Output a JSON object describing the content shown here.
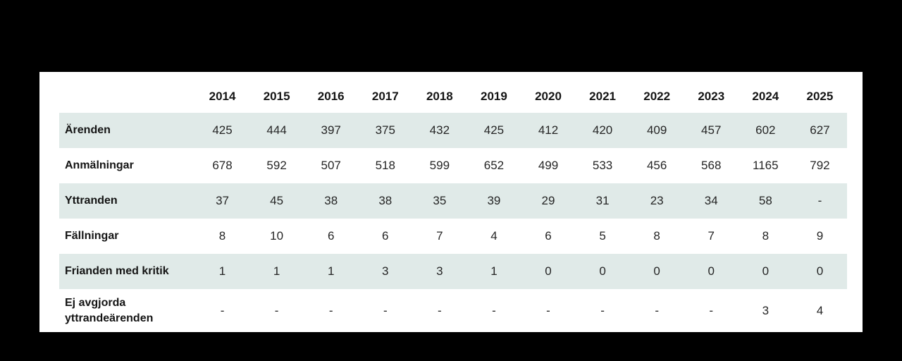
{
  "colors": {
    "page_background": "#000000",
    "card_background": "#ffffff",
    "row_shade": "#e0eae8",
    "heading_text": "#141414",
    "value_text": "#252525"
  },
  "chart_data": {
    "type": "table",
    "categories": [
      "2014",
      "2015",
      "2016",
      "2017",
      "2018",
      "2019",
      "2020",
      "2021",
      "2022",
      "2023",
      "2024",
      "2025"
    ],
    "series": [
      {
        "name": "Ärenden",
        "values": [
          425,
          444,
          397,
          375,
          432,
          425,
          412,
          420,
          409,
          457,
          602,
          627
        ]
      },
      {
        "name": "Anmälningar",
        "values": [
          678,
          592,
          507,
          518,
          599,
          652,
          499,
          533,
          456,
          568,
          1165,
          792
        ]
      },
      {
        "name": "Yttranden",
        "values": [
          37,
          45,
          38,
          38,
          35,
          39,
          29,
          31,
          23,
          34,
          58,
          "-"
        ]
      },
      {
        "name": "Fällningar",
        "values": [
          8,
          10,
          6,
          6,
          7,
          4,
          6,
          5,
          8,
          7,
          8,
          9
        ]
      },
      {
        "name": "Frianden med kritik",
        "values": [
          1,
          1,
          1,
          3,
          3,
          1,
          0,
          0,
          0,
          0,
          0,
          0
        ]
      },
      {
        "name": "Ej avgjorda yttrandeärenden",
        "values": [
          "-",
          "-",
          "-",
          "-",
          "-",
          "-",
          "-",
          "-",
          "-",
          "-",
          3,
          4
        ]
      }
    ],
    "title": "",
    "layout": {
      "shaded_row_indexes": [
        0,
        2,
        4
      ],
      "grid": false,
      "legend": "none"
    }
  }
}
